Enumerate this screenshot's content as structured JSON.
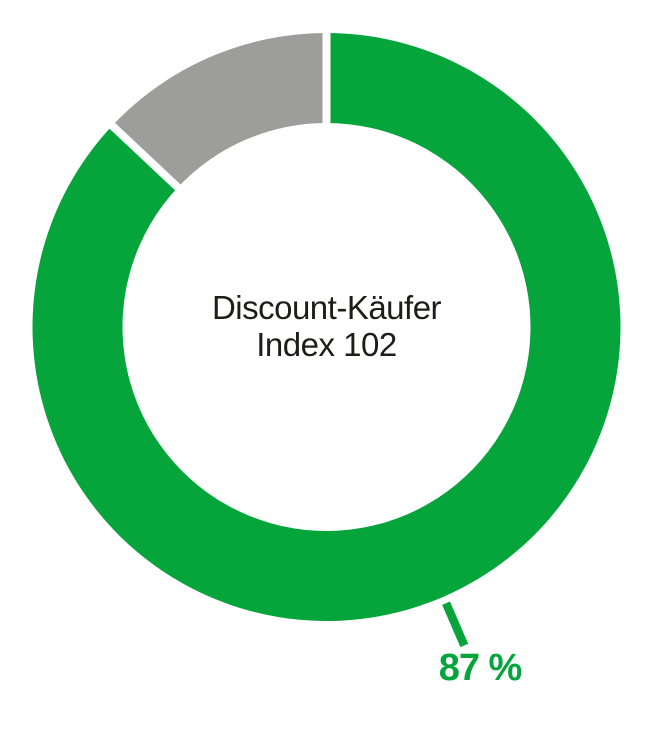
{
  "chart_data": {
    "type": "pie",
    "subtype": "donut",
    "values": [
      87,
      13
    ],
    "colors": [
      "#06a53c",
      "#9d9d9c"
    ],
    "slice_labels": [
      "87 %",
      ""
    ],
    "start_angle_deg": 0,
    "direction": "clockwise",
    "divider_color": "#ffffff",
    "background_color": "#ffffff",
    "text_color": "#1d1d1b",
    "center_label": {
      "line1": "Discount-Käufer",
      "line2": "Index 102"
    },
    "callout": {
      "text": "87 %",
      "slice_index": 0,
      "color": "#06a53c"
    }
  }
}
